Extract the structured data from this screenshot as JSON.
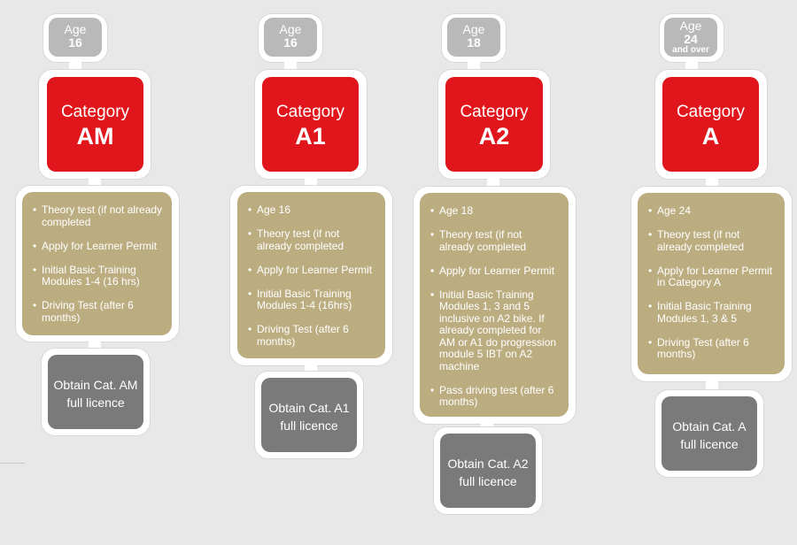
{
  "columns": [
    {
      "age_label": "Age",
      "age_value": "16",
      "age_extra": "",
      "category_word": "Category",
      "category_code": "AM",
      "steps": [
        "Theory test (if not already completed",
        "Apply for Learner Permit",
        "Initial Basic Training Modules 1-4 (16 hrs)",
        "Driving Test (after 6 months)"
      ],
      "result_line1": "Obtain Cat. AM",
      "result_line2": "full licence"
    },
    {
      "age_label": "Age",
      "age_value": "16",
      "age_extra": "",
      "category_word": "Category",
      "category_code": "A1",
      "steps": [
        "Age 16",
        "Theory test (if not already completed",
        "Apply for Learner Permit",
        "Initial Basic Training Modules 1-4 (16hrs)",
        "Driving Test (after 6 months)"
      ],
      "result_line1": "Obtain Cat. A1",
      "result_line2": "full licence"
    },
    {
      "age_label": "Age",
      "age_value": "18",
      "age_extra": "",
      "category_word": "Category",
      "category_code": "A2",
      "steps": [
        "Age 18",
        "Theory test (if not already completed",
        "Apply for Learner Permit",
        "Initial Basic Training Modules 1, 3 and 5 inclusive on A2 bike. If already completed for AM or A1 do progression module 5 IBT on A2 machine",
        "Pass driving test (after 6 months)"
      ],
      "result_line1": "Obtain Cat. A2",
      "result_line2": "full licence"
    },
    {
      "age_label": "Age",
      "age_value": "24",
      "age_extra": "and over",
      "category_word": "Category",
      "category_code": "A",
      "steps": [
        "Age 24",
        "Theory test (if not already completed",
        "Apply for Learner Permit in Category A",
        "Initial Basic Training Modules 1, 3 & 5",
        "Driving Test (after 6 months)"
      ],
      "result_line1": "Obtain Cat. A",
      "result_line2": "full licence"
    }
  ]
}
